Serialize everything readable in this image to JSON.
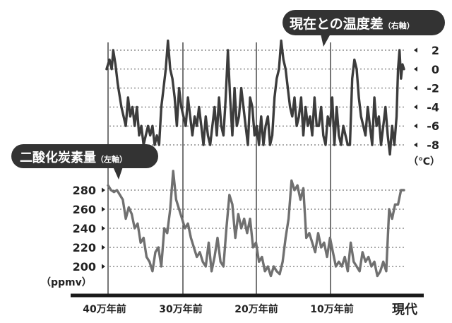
{
  "chart_data": [
    {
      "type": "line",
      "title": "現在との温度差",
      "axis_note": "（右軸）",
      "unit": "（℃）",
      "x_ticks": [
        "40万年前",
        "30万年前",
        "20万年前",
        "10万年前",
        "現代"
      ],
      "y_ticks": [
        "2",
        "0",
        "-2",
        "-4",
        "-6",
        "-8"
      ],
      "ylim": [
        -8,
        2
      ],
      "grid": true,
      "series": [
        {
          "color": "#3c3c3c",
          "x": [
            -402,
            -398,
            -395,
            -393,
            -390,
            -387,
            -385,
            -382,
            -379,
            -376,
            -373,
            -370,
            -367,
            -364,
            -361,
            -358,
            -355,
            -352,
            -349,
            -346,
            -343,
            -340,
            -337,
            -334,
            -331,
            -328,
            -325,
            -322,
            -319,
            -316,
            -313,
            -310,
            -307,
            -304,
            -301,
            -298,
            -295,
            -292,
            -289,
            -286,
            -283,
            -280,
            -277,
            -274,
            -271,
            -268,
            -265,
            -262,
            -259,
            -256,
            -253,
            -250,
            -247,
            -244,
            -241,
            -238,
            -235,
            -232,
            -229,
            -226,
            -223,
            -220,
            -217,
            -214,
            -211,
            -208,
            -205,
            -202,
            -199,
            -196,
            -193,
            -190,
            -187,
            -184,
            -181,
            -178,
            -175,
            -172,
            -169,
            -166,
            -163,
            -160,
            -157,
            -154,
            -151,
            -148,
            -145,
            -142,
            -139,
            -136,
            -133,
            -130,
            -127,
            -124,
            -121,
            -118,
            -115,
            -112,
            -109,
            -106,
            -103,
            -100,
            -97,
            -94,
            -91,
            -88,
            -85,
            -82,
            -79,
            -76,
            -73,
            -70,
            -67,
            -64,
            -61,
            -58,
            -55,
            -52,
            -49,
            -46,
            -43,
            -40,
            -37,
            -34,
            -31,
            -28,
            -25,
            -22,
            -19,
            -16,
            -13,
            -10,
            -8,
            -6,
            -4,
            -2,
            0
          ],
          "y": [
            0,
            1,
            0,
            2,
            0.5,
            -1.5,
            -2.5,
            -4,
            -5,
            -6,
            -3,
            -5,
            -4,
            -6,
            -4,
            -7,
            -6,
            -8,
            -7,
            -6,
            -7,
            -6,
            -8,
            -7,
            -8,
            -4,
            -2,
            0,
            3,
            0,
            -1,
            -3,
            -6,
            -2,
            -4,
            -5,
            -6,
            -3,
            -5,
            -7,
            -5,
            -6,
            -4,
            -6,
            -8,
            -5,
            -7,
            -8,
            -6,
            -4,
            -7,
            -3,
            -6,
            -7,
            -3,
            2,
            -3,
            -7,
            -2,
            -6,
            -5,
            -2,
            -4,
            -6,
            -8,
            -3,
            -4,
            -7,
            -6,
            -8,
            -5,
            -8,
            -6,
            -5,
            -8,
            -7,
            -3,
            -1,
            0,
            3,
            1,
            0,
            -2,
            -4,
            -5,
            -3,
            -6,
            -5,
            -3,
            -7,
            -4,
            -6,
            -5,
            -7,
            -3,
            -6,
            -6,
            -4,
            -7,
            -8,
            -5,
            -6,
            -3,
            -8,
            -4,
            -7,
            -8,
            -6,
            -7,
            -8,
            -8,
            -1,
            1,
            0,
            -3,
            -5,
            -6,
            -7,
            -4,
            -6,
            -8,
            -3,
            -6,
            -5,
            -8,
            -6,
            -4,
            -7,
            -9,
            -6,
            -8,
            -5,
            0,
            2,
            -1,
            0.5,
            0
          ]
        }
      ]
    },
    {
      "type": "line",
      "title": "二酸化炭素量",
      "axis_note": "（左軸）",
      "ylabel": "（ppmv）",
      "x_ticks": [
        "40万年前",
        "30万年前",
        "20万年前",
        "10万年前",
        "現代"
      ],
      "y_ticks": [
        "280",
        "260",
        "240",
        "220",
        "200"
      ],
      "ylim": [
        200,
        280
      ],
      "grid": true,
      "series": [
        {
          "color": "#707070",
          "x": [
            -400,
            -396,
            -392,
            -388,
            -384,
            -380,
            -376,
            -372,
            -368,
            -364,
            -360,
            -356,
            -352,
            -348,
            -344,
            -340,
            -336,
            -332,
            -328,
            -324,
            -320,
            -316,
            -312,
            -308,
            -304,
            -300,
            -296,
            -292,
            -288,
            -284,
            -280,
            -276,
            -272,
            -268,
            -264,
            -260,
            -256,
            -252,
            -248,
            -244,
            -240,
            -236,
            -232,
            -228,
            -224,
            -220,
            -216,
            -212,
            -208,
            -204,
            -200,
            -196,
            -192,
            -188,
            -184,
            -180,
            -176,
            -172,
            -168,
            -164,
            -160,
            -156,
            -152,
            -148,
            -144,
            -140,
            -136,
            -132,
            -128,
            -124,
            -120,
            -116,
            -112,
            -108,
            -104,
            -100,
            -96,
            -92,
            -88,
            -84,
            -80,
            -76,
            -72,
            -68,
            -64,
            -60,
            -56,
            -52,
            -48,
            -44,
            -40,
            -36,
            -32,
            -28,
            -24,
            -20,
            -16,
            -12,
            -8,
            -4,
            0
          ],
          "y": [
            285,
            280,
            278,
            280,
            275,
            270,
            250,
            262,
            255,
            240,
            245,
            225,
            230,
            210,
            205,
            195,
            215,
            220,
            200,
            240,
            235,
            260,
            300,
            270,
            260,
            250,
            240,
            245,
            230,
            220,
            210,
            215,
            205,
            200,
            225,
            195,
            210,
            230,
            205,
            200,
            240,
            275,
            265,
            230,
            255,
            240,
            250,
            235,
            250,
            220,
            225,
            205,
            210,
            195,
            200,
            190,
            200,
            195,
            192,
            205,
            230,
            250,
            290,
            280,
            285,
            270,
            282,
            230,
            235,
            225,
            215,
            235,
            220,
            225,
            210,
            230,
            215,
            200,
            205,
            200,
            210,
            195,
            225,
            205,
            200,
            195,
            215,
            205,
            210,
            200,
            205,
            190,
            195,
            205,
            195,
            260,
            250,
            265,
            265,
            280,
            280
          ]
        }
      ]
    }
  ],
  "labels": {
    "bottom_right_label": "現代"
  },
  "colors": {
    "temperature_line": "#3c3c3c",
    "co2_line": "#707070",
    "bubble_bg": "#333333",
    "axis": "#1a1a1a",
    "grid": "#555555"
  }
}
